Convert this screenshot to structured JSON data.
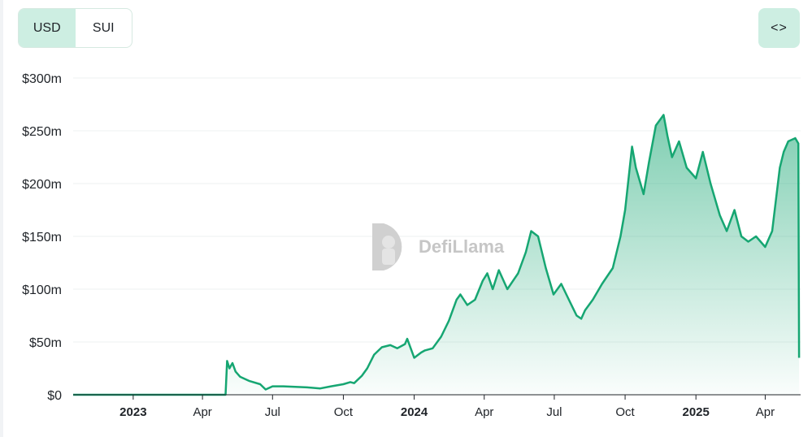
{
  "toggle": {
    "options": [
      "USD",
      "SUI"
    ],
    "active": "USD"
  },
  "embed": {
    "label": "<>",
    "icon": "code-brackets-icon"
  },
  "watermark": {
    "text": "DefiLlama",
    "icon": "llama-logo-icon"
  },
  "colors": {
    "line": "#16a672",
    "fill_top": "#16a672",
    "active_toggle": "#cdeee2"
  },
  "chart_data": {
    "type": "area",
    "title": "",
    "xlabel": "",
    "ylabel": "",
    "grid": true,
    "ylim": [
      0,
      300
    ],
    "y_unit": "$m",
    "yticks": [
      {
        "value": 0,
        "label": "$0"
      },
      {
        "value": 50,
        "label": "$50m"
      },
      {
        "value": 100,
        "label": "$100m"
      },
      {
        "value": 150,
        "label": "$150m"
      },
      {
        "value": 200,
        "label": "$200m"
      },
      {
        "value": 250,
        "label": "$250m"
      },
      {
        "value": 300,
        "label": "$300m"
      }
    ],
    "xlim": [
      "2022-10-15",
      "2025-05-17"
    ],
    "xticks": [
      {
        "date": "2023-01-01",
        "label": "2023",
        "major": true
      },
      {
        "date": "2023-04-01",
        "label": "Apr",
        "major": false
      },
      {
        "date": "2023-07-01",
        "label": "Jul",
        "major": false
      },
      {
        "date": "2023-10-01",
        "label": "Oct",
        "major": false
      },
      {
        "date": "2024-01-01",
        "label": "2024",
        "major": true
      },
      {
        "date": "2024-04-01",
        "label": "Apr",
        "major": false
      },
      {
        "date": "2024-07-01",
        "label": "Jul",
        "major": false
      },
      {
        "date": "2024-10-01",
        "label": "Oct",
        "major": false
      },
      {
        "date": "2025-01-01",
        "label": "2025",
        "major": true
      },
      {
        "date": "2025-04-01",
        "label": "Apr",
        "major": false
      }
    ],
    "series": [
      {
        "x": [
          "2022-10-15",
          "2023-05-01",
          "2023-05-03",
          "2023-05-06",
          "2023-05-10",
          "2023-05-14",
          "2023-05-20",
          "2023-06-01",
          "2023-06-15",
          "2023-06-22",
          "2023-07-01",
          "2023-07-15",
          "2023-08-15",
          "2023-09-01",
          "2023-09-15",
          "2023-10-01",
          "2023-10-10",
          "2023-10-15",
          "2023-10-25",
          "2023-11-01",
          "2023-11-10",
          "2023-11-20",
          "2023-12-01",
          "2023-12-10",
          "2023-12-20",
          "2023-12-23",
          "2024-01-01",
          "2024-01-10",
          "2024-01-15",
          "2024-01-25",
          "2024-02-05",
          "2024-02-15",
          "2024-02-25",
          "2024-03-01",
          "2024-03-10",
          "2024-03-20",
          "2024-03-30",
          "2024-04-05",
          "2024-04-12",
          "2024-04-20",
          "2024-05-01",
          "2024-05-15",
          "2024-05-25",
          "2024-06-01",
          "2024-06-10",
          "2024-06-20",
          "2024-06-30",
          "2024-07-10",
          "2024-07-20",
          "2024-07-30",
          "2024-08-05",
          "2024-08-10",
          "2024-08-20",
          "2024-09-01",
          "2024-09-15",
          "2024-09-25",
          "2024-10-01",
          "2024-10-10",
          "2024-10-15",
          "2024-10-25",
          "2024-11-01",
          "2024-11-10",
          "2024-11-20",
          "2024-11-25",
          "2024-12-01",
          "2024-12-10",
          "2024-12-20",
          "2025-01-01",
          "2025-01-10",
          "2025-01-20",
          "2025-02-01",
          "2025-02-10",
          "2025-02-20",
          "2025-03-01",
          "2025-03-10",
          "2025-03-20",
          "2025-04-01",
          "2025-04-10",
          "2025-04-15",
          "2025-04-20",
          "2025-04-25",
          "2025-05-01",
          "2025-05-10",
          "2025-05-14",
          "2025-05-15"
        ],
        "y": [
          0,
          0,
          32,
          25,
          30,
          22,
          17,
          13,
          10,
          5,
          8,
          8,
          7,
          6,
          8,
          10,
          12,
          11,
          18,
          25,
          38,
          45,
          47,
          44,
          48,
          53,
          35,
          40,
          42,
          44,
          55,
          70,
          90,
          95,
          85,
          90,
          108,
          115,
          100,
          118,
          100,
          115,
          135,
          155,
          150,
          120,
          95,
          105,
          90,
          75,
          72,
          80,
          90,
          105,
          120,
          150,
          175,
          235,
          215,
          190,
          220,
          255,
          265,
          245,
          225,
          240,
          215,
          205,
          230,
          200,
          170,
          155,
          175,
          150,
          145,
          150,
          140,
          155,
          185,
          215,
          230,
          240,
          243,
          238,
          35
        ]
      }
    ]
  }
}
